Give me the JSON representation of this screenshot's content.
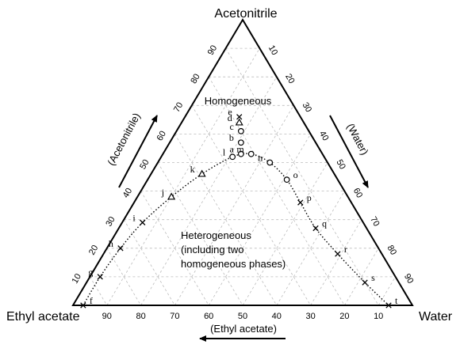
{
  "vertices": {
    "top": "Acetonitrile",
    "left": "Ethyl acetate",
    "right": "Water"
  },
  "axis_names": {
    "left": "(Acetonitrile)",
    "right": "(Water)",
    "bottom": "(Ethyl acetate)"
  },
  "ticks": {
    "left": [
      "10",
      "20",
      "30",
      "40",
      "50",
      "60",
      "70",
      "80",
      "90"
    ],
    "right": [
      "10",
      "20",
      "30",
      "40",
      "50",
      "60",
      "70",
      "80",
      "90"
    ],
    "bottom": [
      "90",
      "80",
      "70",
      "60",
      "50",
      "40",
      "30",
      "20",
      "10"
    ]
  },
  "regions": {
    "homogeneous": "Homogeneous",
    "heterogeneous": [
      "Heterogeneous",
      "(including two",
      "homogeneous phases)"
    ]
  },
  "chart_data": {
    "type": "ternary",
    "components": [
      "Acetonitrile",
      "Water",
      "Ethyl acetate"
    ],
    "grid": true,
    "points": [
      {
        "label": "f",
        "marker": "cross",
        "a": 0,
        "w": 3
      },
      {
        "label": "g",
        "marker": "cross",
        "a": 10,
        "w": 3
      },
      {
        "label": "h",
        "marker": "cross",
        "a": 20,
        "w": 4
      },
      {
        "label": "i",
        "marker": "cross",
        "a": 29,
        "w": 6
      },
      {
        "label": "j",
        "marker": "triangle",
        "a": 38,
        "w": 10
      },
      {
        "label": "k",
        "marker": "triangle",
        "a": 46,
        "w": 15
      },
      {
        "label": "l",
        "marker": "circle",
        "a": 52,
        "w": 21
      },
      {
        "label": "a",
        "marker": "circle",
        "a": 53,
        "w": 23
      },
      {
        "label": "b",
        "marker": "circle",
        "a": 57,
        "w": 21
      },
      {
        "label": "c",
        "marker": "circle",
        "a": 61,
        "w": 19
      },
      {
        "label": "d",
        "marker": "triangle",
        "a": 64,
        "w": 17
      },
      {
        "label": "e",
        "marker": "cross",
        "a": 66,
        "w": 16
      },
      {
        "label": "m",
        "marker": "circle",
        "a": 53,
        "w": 26
      },
      {
        "label": "n",
        "marker": "circle",
        "a": 50,
        "w": 33
      },
      {
        "label": "o",
        "marker": "circle",
        "a": 44,
        "w": 41
      },
      {
        "label": "p",
        "marker": "cross",
        "a": 36,
        "w": 49
      },
      {
        "label": "q",
        "marker": "cross",
        "a": 27,
        "w": 58
      },
      {
        "label": "r",
        "marker": "cross",
        "a": 18,
        "w": 69
      },
      {
        "label": "s",
        "marker": "cross",
        "a": 8,
        "w": 82
      },
      {
        "label": "t",
        "marker": "cross",
        "a": 0,
        "w": 93
      }
    ],
    "binodal_curve": [
      [
        0,
        3
      ],
      [
        10,
        3
      ],
      [
        20,
        4
      ],
      [
        29,
        6
      ],
      [
        38,
        10
      ],
      [
        46,
        15
      ],
      [
        52,
        21
      ],
      [
        53,
        26
      ],
      [
        50,
        33
      ],
      [
        44,
        41
      ],
      [
        36,
        49
      ],
      [
        27,
        58
      ],
      [
        18,
        69
      ],
      [
        8,
        82
      ],
      [
        0,
        93
      ]
    ]
  }
}
